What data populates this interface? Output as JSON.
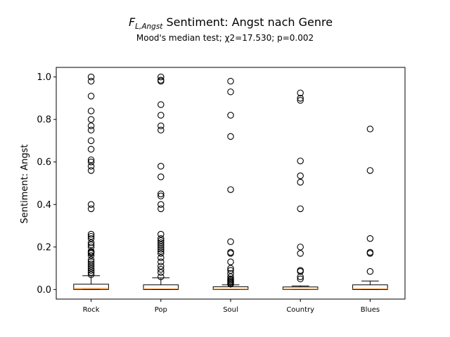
{
  "chart_data": {
    "type": "boxplot",
    "title_symbol": "F",
    "title_subscript": "L,Angst",
    "title_rest": " Sentiment: Angst nach Genre",
    "subtitle": "Mood's median test; χ2=17.530; p=0.002",
    "ylabel": "Sentiment: Angst",
    "xlabel": "",
    "ylim": [
      -0.045,
      1.045
    ],
    "yticks": [
      "0.0",
      "0.2",
      "0.4",
      "0.6",
      "0.8",
      "1.0"
    ],
    "categories": [
      "Rock",
      "Pop",
      "Soul",
      "Country",
      "Blues"
    ],
    "median_color": "#ff7f0e",
    "boxes": [
      {
        "label": "Rock",
        "whislo": 0.0,
        "q1": 0.0,
        "med": 0.005,
        "q3": 0.025,
        "whishi": 0.065,
        "fliers": [
          0.07,
          0.08,
          0.09,
          0.1,
          0.11,
          0.12,
          0.13,
          0.14,
          0.16,
          0.17,
          0.175,
          0.18,
          0.2,
          0.21,
          0.22,
          0.24,
          0.25,
          0.26,
          0.38,
          0.4,
          0.56,
          0.58,
          0.6,
          0.61,
          0.66,
          0.7,
          0.75,
          0.77,
          0.8,
          0.84,
          0.91,
          0.98,
          1.0
        ]
      },
      {
        "label": "Pop",
        "whislo": 0.0,
        "q1": 0.0,
        "med": 0.003,
        "q3": 0.022,
        "whishi": 0.055,
        "fliers": [
          0.06,
          0.08,
          0.095,
          0.11,
          0.13,
          0.15,
          0.17,
          0.18,
          0.19,
          0.2,
          0.21,
          0.22,
          0.23,
          0.24,
          0.26,
          0.38,
          0.4,
          0.44,
          0.45,
          0.53,
          0.58,
          0.75,
          0.77,
          0.82,
          0.87,
          0.98,
          0.985,
          1.0
        ]
      },
      {
        "label": "Soul",
        "whislo": 0.0,
        "q1": 0.0,
        "med": 0.002,
        "q3": 0.013,
        "whishi": 0.022,
        "fliers": [
          0.025,
          0.03,
          0.035,
          0.04,
          0.045,
          0.05,
          0.06,
          0.075,
          0.09,
          0.1,
          0.13,
          0.17,
          0.175,
          0.225,
          0.47,
          0.72,
          0.82,
          0.93,
          0.98
        ]
      },
      {
        "label": "Country",
        "whislo": 0.0,
        "q1": 0.0,
        "med": 0.002,
        "q3": 0.012,
        "whishi": 0.017,
        "fliers": [
          0.05,
          0.06,
          0.085,
          0.09,
          0.17,
          0.2,
          0.38,
          0.505,
          0.535,
          0.605,
          0.89,
          0.9,
          0.925
        ]
      },
      {
        "label": "Blues",
        "whislo": 0.0,
        "q1": 0.0,
        "med": 0.003,
        "q3": 0.022,
        "whishi": 0.04,
        "fliers": [
          0.085,
          0.17,
          0.175,
          0.24,
          0.56,
          0.755
        ]
      }
    ]
  }
}
